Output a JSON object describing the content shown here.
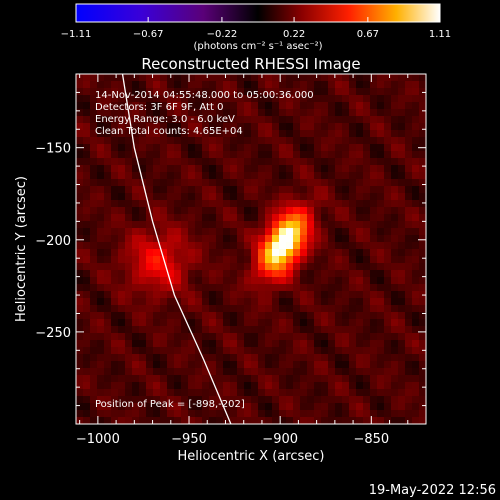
{
  "chart_data": {
    "type": "heatmap",
    "title": "Reconstructed RHESSI Image",
    "xlabel": "Heliocentric X (arcsec)",
    "ylabel": "Heliocentric Y (arcsec)",
    "xlim": [
      -1012,
      -820
    ],
    "ylim": [
      -300,
      -110
    ],
    "xticks": [
      -1000,
      -950,
      -900,
      -850
    ],
    "xtick_labels": [
      "−1000",
      "−950",
      "−900",
      "−850"
    ],
    "yticks": [
      -150,
      -200,
      -250
    ],
    "ytick_labels": [
      "−150",
      "−200",
      "−250"
    ],
    "colorbar": {
      "min": -1.11,
      "max": 1.11,
      "ticks": [
        -1.11,
        -0.67,
        -0.22,
        0.22,
        0.67,
        1.11
      ],
      "tick_labels": [
        "−1.11",
        "−0.67",
        "−0.22",
        "0.22",
        "0.67",
        "1.11"
      ],
      "unit_label": "(photons cm⁻² s⁻¹ asec⁻²)"
    },
    "info_lines": [
      "14-Nov-2014 04:55:48.000 to 05:00:36.000",
      "Detectors: 3F 6F 9F, Att 0",
      "Energy Range: 3.0 - 6.0 keV",
      "Clean    Total counts: 4.65E+04"
    ],
    "peak_label": "Position of Peak = [-898,-202]",
    "peak": {
      "x": -898,
      "y": -202,
      "value": 1.11
    },
    "sources": [
      {
        "x": -898,
        "y": -202,
        "sx": 7,
        "sy": 13,
        "angle": 30,
        "amplitude": 1.11
      },
      {
        "x": -967,
        "y": -212,
        "sx": 12,
        "sy": 12,
        "angle": 0,
        "amplitude": 0.32
      }
    ],
    "limb_curve": [
      {
        "x": -986.5,
        "y": -110
      },
      {
        "x": -980,
        "y": -150
      },
      {
        "x": -970,
        "y": -190
      },
      {
        "x": -958,
        "y": -230
      },
      {
        "x": -942,
        "y": -265
      },
      {
        "x": -927,
        "y": -300
      }
    ]
  },
  "footer": {
    "timestamp": "19-May-2022 12:56"
  },
  "colors": {
    "background": "#000000",
    "foreground": "#ffffff",
    "limb": "#ffffff"
  }
}
